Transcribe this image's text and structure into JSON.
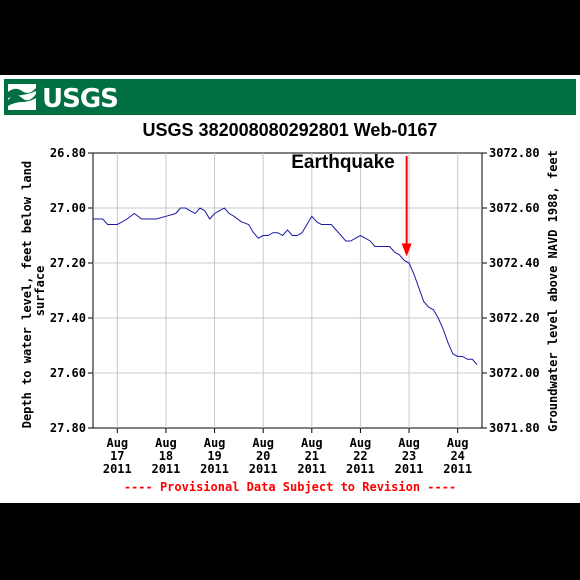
{
  "banner": {
    "logo_text": "USGS",
    "color": "#006f41"
  },
  "chart_data": {
    "type": "line",
    "title": "USGS 382008080292801  Web-0167",
    "ylabel_left": [
      "Depth to water level, feet below land",
      "surface"
    ],
    "ylabel_right": "Groundwater level above NAVD 1988, feet",
    "y_left_lim": [
      26.8,
      27.8
    ],
    "y_left_inverted": true,
    "y_left_ticks": [
      "26.80",
      "27.00",
      "27.20",
      "27.40",
      "27.60",
      "27.80"
    ],
    "y_right_ticks": [
      "3072.80",
      "3072.60",
      "3072.40",
      "3072.20",
      "3072.00",
      "3071.80"
    ],
    "x_lim": [
      16.5,
      24.5
    ],
    "x_ticks": [
      {
        "x": 17,
        "lines": [
          "Aug",
          "17",
          "2011"
        ]
      },
      {
        "x": 18,
        "lines": [
          "Aug",
          "18",
          "2011"
        ]
      },
      {
        "x": 19,
        "lines": [
          "Aug",
          "19",
          "2011"
        ]
      },
      {
        "x": 20,
        "lines": [
          "Aug",
          "20",
          "2011"
        ]
      },
      {
        "x": 21,
        "lines": [
          "Aug",
          "21",
          "2011"
        ]
      },
      {
        "x": 22,
        "lines": [
          "Aug",
          "22",
          "2011"
        ]
      },
      {
        "x": 23,
        "lines": [
          "Aug",
          "23",
          "2011"
        ]
      },
      {
        "x": 24,
        "lines": [
          "Aug",
          "24",
          "2011"
        ]
      }
    ],
    "grid": true,
    "line_color": "#1a1aa8",
    "series": [
      {
        "x": [
          16.5,
          16.7,
          16.8,
          17.0,
          17.1,
          17.2,
          17.35,
          17.5,
          17.65,
          17.8,
          18.0,
          18.2,
          18.3,
          18.4,
          18.5,
          18.6,
          18.7,
          18.8,
          18.9,
          19.0,
          19.1,
          19.2,
          19.3,
          19.4,
          19.55,
          19.7,
          19.8,
          19.9,
          20.0,
          20.1,
          20.2,
          20.3,
          20.4,
          20.5,
          20.6,
          20.7,
          20.8,
          20.9,
          21.0,
          21.1,
          21.2,
          21.3,
          21.4,
          21.5,
          21.6,
          21.7,
          21.8,
          21.9,
          22.0,
          22.1,
          22.2,
          22.3,
          22.4,
          22.5,
          22.6,
          22.7,
          22.8,
          22.9,
          23.0,
          23.1,
          23.2,
          23.3,
          23.4,
          23.5,
          23.6,
          23.7,
          23.8,
          23.9,
          24.0,
          24.1,
          24.2,
          24.3,
          24.4
        ],
        "y": [
          27.04,
          27.04,
          27.06,
          27.06,
          27.05,
          27.04,
          27.02,
          27.04,
          27.04,
          27.04,
          27.03,
          27.02,
          27.0,
          27.0,
          27.01,
          27.02,
          27.0,
          27.01,
          27.04,
          27.02,
          27.01,
          27.0,
          27.02,
          27.03,
          27.05,
          27.06,
          27.09,
          27.11,
          27.1,
          27.1,
          27.09,
          27.09,
          27.1,
          27.08,
          27.1,
          27.1,
          27.09,
          27.06,
          27.03,
          27.05,
          27.06,
          27.06,
          27.06,
          27.08,
          27.1,
          27.12,
          27.12,
          27.11,
          27.1,
          27.11,
          27.12,
          27.14,
          27.14,
          27.14,
          27.14,
          27.16,
          27.17,
          27.19,
          27.2,
          27.24,
          27.29,
          27.34,
          27.36,
          27.37,
          27.4,
          27.44,
          27.49,
          27.53,
          27.54,
          27.54,
          27.55,
          27.55,
          27.57
        ]
      }
    ],
    "annotation": {
      "label": "Earthquake",
      "x": 22.95,
      "y": 27.18,
      "color": "#ff0000"
    },
    "footer": "---- Provisional Data Subject to Revision ----",
    "footer_color": "#ff0000"
  }
}
